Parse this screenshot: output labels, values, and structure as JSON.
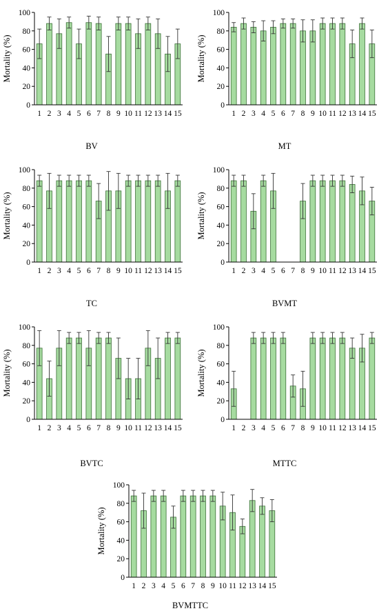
{
  "colors": {
    "bar_fill": "#a6dba0",
    "bar_stroke": "#3a6e35",
    "error_bar": "#333333",
    "axis": "#000000"
  },
  "chart_data": [
    {
      "type": "bar",
      "title": "",
      "caption": "BV",
      "ylabel": "Mortality (%)",
      "xlabel": "",
      "ylim": [
        0,
        100
      ],
      "yticks": [
        0,
        20,
        40,
        60,
        80,
        100
      ],
      "categories": [
        "1",
        "2",
        "3",
        "4",
        "5",
        "6",
        "7",
        "8",
        "9",
        "10",
        "11",
        "12",
        "13",
        "14",
        "15"
      ],
      "values": [
        66,
        88,
        77,
        89,
        66,
        89,
        88,
        55,
        88,
        88,
        77,
        88,
        77,
        55,
        66
      ],
      "errors": [
        16,
        7,
        16,
        6,
        16,
        7,
        7,
        19,
        7,
        7,
        16,
        7,
        16,
        19,
        16
      ]
    },
    {
      "type": "bar",
      "title": "",
      "caption": "MT",
      "ylabel": "Mortality (%)",
      "xlabel": "",
      "ylim": [
        0,
        100
      ],
      "yticks": [
        0,
        20,
        40,
        60,
        80,
        100
      ],
      "categories": [
        "1",
        "2",
        "3",
        "4",
        "5",
        "6",
        "7",
        "8",
        "9",
        "10",
        "11",
        "12",
        "13",
        "14",
        "15"
      ],
      "values": [
        84,
        88,
        84,
        80,
        84,
        88,
        88,
        80,
        80,
        88,
        88,
        88,
        66,
        88,
        66
      ],
      "errors": [
        5,
        6,
        6,
        11,
        7,
        5,
        5,
        12,
        12,
        6,
        6,
        6,
        15,
        6,
        15
      ]
    },
    {
      "type": "bar",
      "title": "",
      "caption": "TC",
      "ylabel": "Mortality (%)",
      "xlabel": "",
      "ylim": [
        0,
        100
      ],
      "yticks": [
        0,
        20,
        40,
        60,
        80,
        100
      ],
      "categories": [
        "1",
        "2",
        "3",
        "4",
        "5",
        "6",
        "7",
        "8",
        "9",
        "10",
        "11",
        "12",
        "13",
        "14",
        "15"
      ],
      "values": [
        88,
        77,
        88,
        88,
        88,
        88,
        66,
        77,
        77,
        88,
        88,
        88,
        88,
        77,
        88
      ],
      "errors": [
        6,
        19,
        6,
        6,
        6,
        6,
        19,
        21,
        19,
        6,
        6,
        6,
        6,
        19,
        6
      ]
    },
    {
      "type": "bar",
      "title": "",
      "caption": "BVMT",
      "ylabel": "Mortality (%)",
      "xlabel": "",
      "ylim": [
        0,
        100
      ],
      "yticks": [
        0,
        20,
        40,
        60,
        80,
        100
      ],
      "categories": [
        "1",
        "2",
        "3",
        "4",
        "5",
        "6",
        "7",
        "8",
        "9",
        "10",
        "11",
        "12",
        "13",
        "14",
        "15"
      ],
      "values": [
        88,
        88,
        55,
        88,
        77,
        0,
        0,
        66,
        88,
        88,
        88,
        88,
        84,
        77,
        66
      ],
      "errors": [
        6,
        6,
        19,
        6,
        19,
        0,
        0,
        19,
        6,
        6,
        6,
        6,
        9,
        15,
        15
      ]
    },
    {
      "type": "bar",
      "title": "",
      "caption": "BVTC",
      "ylabel": "Mortality (%)",
      "xlabel": "",
      "ylim": [
        0,
        100
      ],
      "yticks": [
        0,
        20,
        40,
        60,
        80,
        100
      ],
      "categories": [
        "1",
        "2",
        "3",
        "4",
        "5",
        "6",
        "7",
        "8",
        "9",
        "10",
        "11",
        "12",
        "13",
        "14",
        "15"
      ],
      "values": [
        77,
        44,
        77,
        88,
        88,
        77,
        88,
        88,
        66,
        44,
        44,
        77,
        66,
        88,
        88
      ],
      "errors": [
        19,
        19,
        19,
        6,
        6,
        19,
        6,
        6,
        22,
        22,
        22,
        19,
        22,
        6,
        6
      ]
    },
    {
      "type": "bar",
      "title": "",
      "caption": "MTTC",
      "ylabel": "Mortality (%)",
      "xlabel": "",
      "ylim": [
        0,
        100
      ],
      "yticks": [
        0,
        20,
        40,
        60,
        80,
        100
      ],
      "categories": [
        "1",
        "2",
        "3",
        "4",
        "5",
        "6",
        "7",
        "8",
        "9",
        "10",
        "11",
        "12",
        "13",
        "14",
        "15"
      ],
      "values": [
        33,
        0,
        88,
        88,
        88,
        88,
        36,
        33,
        88,
        88,
        88,
        88,
        77,
        77,
        88
      ],
      "errors": [
        19,
        0,
        6,
        6,
        6,
        6,
        12,
        19,
        6,
        6,
        6,
        6,
        11,
        15,
        6
      ]
    },
    {
      "type": "bar",
      "title": "",
      "caption": "BVMTTC",
      "ylabel": "Mortality (%)",
      "xlabel": "",
      "ylim": [
        0,
        100
      ],
      "yticks": [
        0,
        20,
        40,
        60,
        80,
        100
      ],
      "categories": [
        "1",
        "2",
        "3",
        "4",
        "5",
        "6",
        "7",
        "8",
        "9",
        "10",
        "11",
        "12",
        "13",
        "14",
        "15"
      ],
      "values": [
        88,
        72,
        88,
        88,
        65,
        88,
        88,
        88,
        88,
        77,
        70,
        55,
        83,
        77,
        72
      ],
      "errors": [
        6,
        19,
        6,
        6,
        12,
        6,
        6,
        6,
        6,
        15,
        19,
        8,
        12,
        9,
        12
      ]
    }
  ]
}
